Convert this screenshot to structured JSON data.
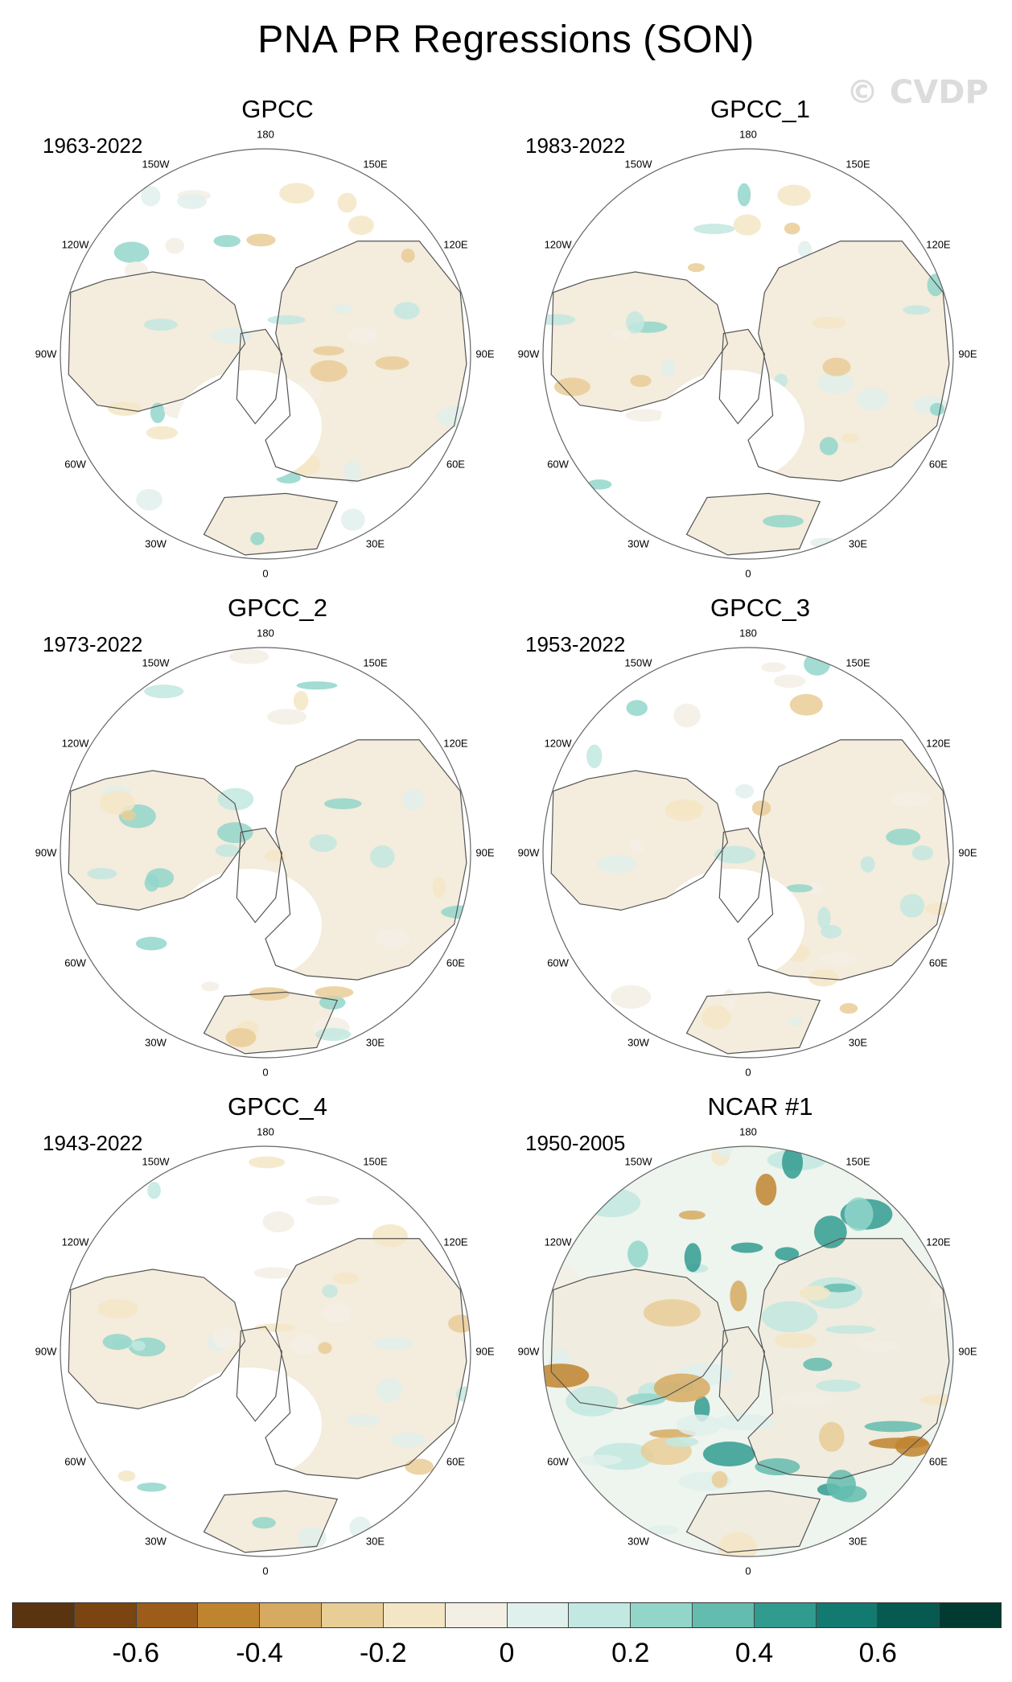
{
  "title": "PNA PR Regressions (SON)",
  "watermark": "© CVDP",
  "longitude_labels": [
    "180",
    "150E",
    "120E",
    "90E",
    "60E",
    "30E",
    "0",
    "30W",
    "60W",
    "90W",
    "120W",
    "150W"
  ],
  "panels": [
    {
      "name": "GPCC",
      "period": "1963-2022",
      "fill": "land-only"
    },
    {
      "name": "GPCC_1",
      "period": "1983-2022",
      "fill": "land-only"
    },
    {
      "name": "GPCC_2",
      "period": "1973-2022",
      "fill": "land-only"
    },
    {
      "name": "GPCC_3",
      "period": "1953-2022",
      "fill": "land-only"
    },
    {
      "name": "GPCC_4",
      "period": "1943-2022",
      "fill": "land-only"
    },
    {
      "name": "NCAR #1",
      "period": "1950-2005",
      "fill": "global"
    }
  ],
  "colorbar": {
    "colors": [
      "#5a3310",
      "#7b4511",
      "#9c5c1a",
      "#bf842f",
      "#d6aa60",
      "#e9cd96",
      "#f4e6c5",
      "#f3efe5",
      "#e0f0ec",
      "#c2e8e1",
      "#92d6ca",
      "#63bcae",
      "#319b90",
      "#137a71",
      "#065a50",
      "#013a30"
    ],
    "tick_labels": [
      "-0.6",
      "-0.4",
      "-0.2",
      "0",
      "0.2",
      "0.4",
      "0.6"
    ],
    "tick_values": [
      -0.6,
      -0.4,
      -0.2,
      0,
      0.2,
      0.4,
      0.6
    ],
    "min": -0.8,
    "max": 0.8
  }
}
